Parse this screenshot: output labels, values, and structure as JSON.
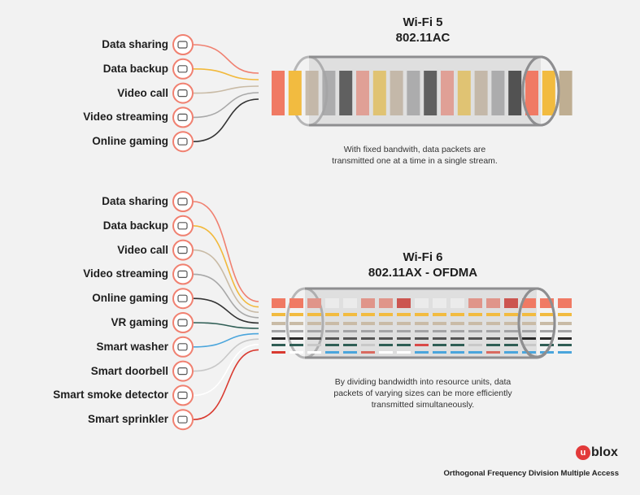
{
  "wifi5": {
    "title": "Wi-Fi 5",
    "subtitle": "802.11AC",
    "caption_line1": "With fixed bandwith, data packets are",
    "caption_line2": "transmitted one at a time in a single stream.",
    "items": [
      {
        "label": "Data sharing",
        "icon": "cloud-upload-icon",
        "color": "#f08070"
      },
      {
        "label": "Data backup",
        "icon": "server-icon",
        "color": "#f2b93b"
      },
      {
        "label": "Video call",
        "icon": "video-camera-icon",
        "color": "#c9bba6"
      },
      {
        "label": "Video streaming",
        "icon": "video-stream-icon",
        "color": "#a8a8a8"
      },
      {
        "label": "Online gaming",
        "icon": "gamepad-icon",
        "color": "#333333"
      }
    ],
    "packets": [
      "#f07a64",
      "#f2bb40",
      "#bfb2a0",
      "#a3a3a5",
      "#4a4a4a",
      "#e0958a",
      "#e0be60",
      "#bfb2a0",
      "#a3a3a5",
      "#4a4a4a",
      "#e0958a",
      "#e0be60",
      "#bfb2a0",
      "#a3a3a5",
      "#3a3a3a",
      "#f07a64",
      "#f2bb40",
      "#bfae92"
    ]
  },
  "wifi6": {
    "title": "Wi-Fi 6",
    "subtitle": "802.11AX - OFDMA",
    "caption_line1": "By dividing bandwidth into resource units, data",
    "caption_line2": "packets of varying sizes can be more efficiently",
    "caption_line3": "transmitted simultaneously.",
    "items": [
      {
        "label": "Data sharing",
        "icon": "cloud-upload-icon",
        "color": "#f08070"
      },
      {
        "label": "Data backup",
        "icon": "server-icon",
        "color": "#f2b93b"
      },
      {
        "label": "Video call",
        "icon": "video-camera-icon",
        "color": "#c9bba6"
      },
      {
        "label": "Video streaming",
        "icon": "video-stream-icon",
        "color": "#a8a8a8"
      },
      {
        "label": "Online gaming",
        "icon": "gamepad-icon",
        "color": "#333333"
      },
      {
        "label": "VR gaming",
        "icon": "vr-headset-icon",
        "color": "#2f5e55"
      },
      {
        "label": "Smart washer",
        "icon": "washer-icon",
        "color": "#4aa5dc"
      },
      {
        "label": "Smart doorbell",
        "icon": "bell-icon",
        "color": "#c8c8c8"
      },
      {
        "label": "Smart smoke detector",
        "icon": "smoke-detector-icon",
        "color": "#ffffff"
      },
      {
        "label": "Smart sprinkler",
        "icon": "sprinkler-icon",
        "color": "#d93a30"
      }
    ],
    "resource_units": [
      [
        "#f07a64",
        "#f07a64",
        "#e0958a",
        "#ebebeb",
        "#ebebeb",
        "#e0958a",
        "#e0958a",
        "#cc5550",
        "#ebebeb",
        "#ebebeb",
        "#ebebeb",
        "#e0958a",
        "#e0958a",
        "#cc5550",
        "#f07a64",
        "#f07a64",
        "#f07a64"
      ],
      [
        "#f2bb40",
        "#f2bb40",
        "#f2bb40",
        "#f2bb40",
        "#f2bb40",
        "#f2bb40",
        "#f2bb40",
        "#f2bb40",
        "#f2bb40",
        "#f2bb40",
        "#f2bb40",
        "#f2bb40",
        "#f2bb40",
        "#f2bb40",
        "#f2bb40",
        "#f2bb40",
        "#f2bb40"
      ],
      [
        "#c9bba6",
        "#c9bba6",
        "#c9bba6",
        "#c9bba6",
        "#c9bba6",
        "#c9bba6",
        "#c9bba6",
        "#c9bba6",
        "#c9bba6",
        "#c9bba6",
        "#c9bba6",
        "#c9bba6",
        "#c9bba6",
        "#c9bba6",
        "#c9bba6",
        "#c9bba6",
        "#c9bba6"
      ],
      [
        "#a3a3a5",
        "#a3a3a5",
        "#a3a3a5",
        "#a3a3a5",
        "#a3a3a5",
        "#a3a3a5",
        "#a3a3a5",
        "#a3a3a5",
        "#a3a3a5",
        "#a3a3a5",
        "#a3a3a5",
        "#a3a3a5",
        "#a3a3a5",
        "#a3a3a5",
        "#a3a3a5",
        "#a3a3a5",
        "#a3a3a5"
      ],
      [
        "#2a2a2a",
        "#2a2a2a",
        "#555555",
        "#555555",
        "#555555",
        "#555555",
        "#555555",
        "#555555",
        "#555555",
        "#555555",
        "#555555",
        "#555555",
        "#555555",
        "#555555",
        "#2a2a2a",
        "#2a2a2a",
        "#2a2a2a"
      ],
      [
        "#2f5e55",
        "#2f5e55",
        "#c8c8c8",
        "#2f5e55",
        "#2f5e55",
        "#c8c8c8",
        "#2f5e55",
        "#2f5e55",
        "#d94a48",
        "#2f5e55",
        "#2f5e55",
        "#c8c8c8",
        "#2f5e55",
        "#2f5e55",
        "#c8c8c8",
        "#2f5e55",
        "#2f5e55"
      ],
      [
        "#d93a30",
        "#ffffff",
        "#ffffff",
        "#4aa5dc",
        "#4aa5dc",
        "#d96a60",
        "#ffffff",
        "#ffffff",
        "#4aa5dc",
        "#4aa5dc",
        "#4aa5dc",
        "#4aa5dc",
        "#d96a60",
        "#4aa5dc",
        "#4aa5dc",
        "#4aa5dc",
        "#4aa5dc"
      ]
    ]
  },
  "logo": {
    "mark": "u",
    "text": "blox"
  },
  "footer": "Orthogonal Frequency Division Multiple Access",
  "colors": {
    "icon_ring": "#f08070",
    "tube": "#8e8e90"
  }
}
